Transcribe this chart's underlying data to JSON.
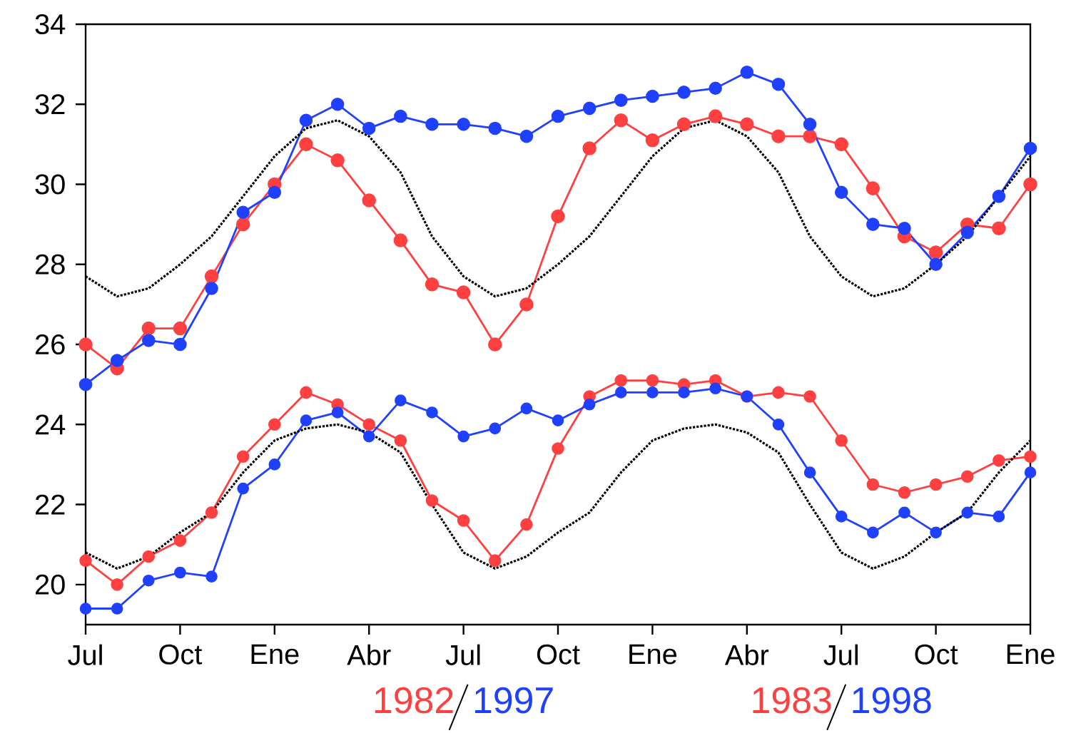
{
  "chart_data": {
    "type": "line",
    "categories": [
      "Jul",
      null,
      null,
      "Oct",
      null,
      null,
      "Ene",
      null,
      null,
      "Abr",
      null,
      null,
      "Jul",
      null,
      null,
      "Oct",
      null,
      null,
      "Ene",
      null,
      null,
      "Abr",
      null,
      null,
      "Jul",
      null,
      null,
      "Oct",
      null,
      null,
      "Ene"
    ],
    "series": [
      {
        "color": "#ff4040",
        "marker": "circle",
        "values": [
          26.0,
          25.4,
          26.4,
          26.4,
          27.7,
          29.0,
          30.0,
          31.0,
          30.6,
          29.6,
          28.6,
          27.5,
          27.3,
          26.0,
          27.0,
          29.2,
          30.9,
          31.6,
          31.1,
          31.5,
          31.7,
          31.5,
          31.2,
          31.2,
          31.0,
          29.9,
          28.7,
          28.3,
          29.0,
          28.9,
          30.0
        ]
      },
      {
        "color": "#2040ff",
        "marker": "circle",
        "values": [
          25.0,
          25.6,
          26.1,
          26.0,
          27.4,
          29.3,
          29.8,
          31.6,
          32.0,
          31.4,
          31.7,
          31.5,
          31.5,
          31.4,
          31.2,
          31.7,
          31.9,
          32.1,
          32.2,
          32.3,
          32.4,
          32.8,
          32.5,
          31.5,
          29.8,
          29.0,
          28.9,
          28.0,
          28.8,
          29.7,
          30.9
        ]
      },
      {
        "color": "#ff4040",
        "marker": "circle",
        "values": [
          20.6,
          20.0,
          20.7,
          21.1,
          21.8,
          23.2,
          24.0,
          24.8,
          24.5,
          24.0,
          23.6,
          22.1,
          21.6,
          20.6,
          21.5,
          23.4,
          24.7,
          25.1,
          25.1,
          25.0,
          25.1,
          24.7,
          24.8,
          24.7,
          23.6,
          22.5,
          22.3,
          22.5,
          22.7,
          23.1,
          23.2
        ]
      },
      {
        "color": "#2040ff",
        "marker": "circle",
        "values": [
          19.4,
          19.4,
          20.1,
          20.3,
          20.2,
          22.4,
          23.0,
          24.1,
          24.3,
          23.7,
          24.6,
          24.3,
          23.7,
          23.9,
          24.4,
          24.1,
          24.5,
          24.8,
          24.8,
          24.8,
          24.9,
          24.7,
          24.0,
          22.8,
          21.7,
          21.3,
          21.8,
          21.3,
          21.8,
          21.7,
          22.8
        ]
      },
      {
        "color": "#000000",
        "marker": "none",
        "line_style": "dotted",
        "values": [
          27.7,
          27.2,
          27.4,
          28.0,
          28.7,
          29.7,
          30.7,
          31.4,
          31.6,
          31.2,
          30.3,
          28.7,
          27.7,
          27.2,
          27.4,
          28.0,
          28.7,
          29.7,
          30.7,
          31.4,
          31.6,
          31.2,
          30.3,
          28.7,
          27.7,
          27.2,
          27.4,
          28.0,
          28.7,
          29.7,
          30.7
        ]
      },
      {
        "color": "#000000",
        "marker": "none",
        "line_style": "dotted",
        "values": [
          20.8,
          20.4,
          20.7,
          21.3,
          21.8,
          22.8,
          23.6,
          23.9,
          24.0,
          23.8,
          23.3,
          22.0,
          20.8,
          20.4,
          20.7,
          21.3,
          21.8,
          22.8,
          23.6,
          23.9,
          24.0,
          23.8,
          23.3,
          22.0,
          20.8,
          20.4,
          20.7,
          21.3,
          21.8,
          22.8,
          23.6
        ]
      }
    ],
    "ylim": [
      19,
      34
    ],
    "yticks": [
      20,
      22,
      24,
      26,
      28,
      30,
      32,
      34
    ],
    "annotations": [
      "1982",
      "1997",
      "1983",
      "1998"
    ]
  }
}
